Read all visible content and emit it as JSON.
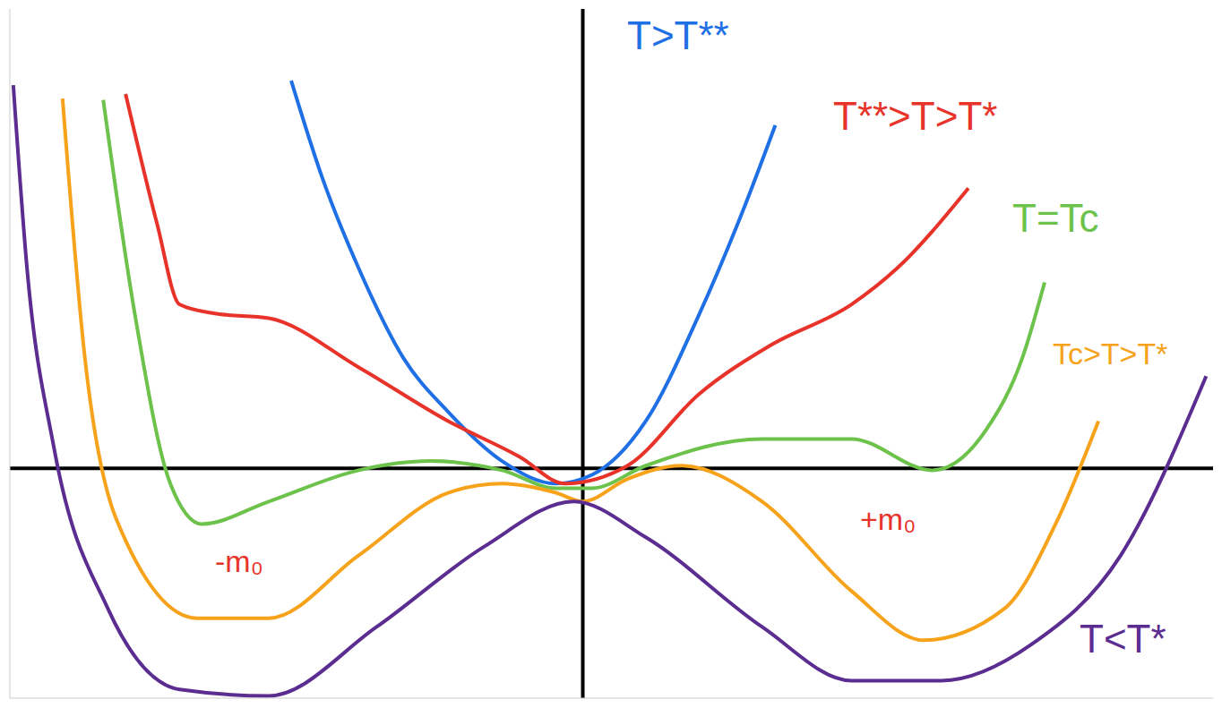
{
  "chart_data": {
    "type": "line",
    "tick_labels": false,
    "grid": false,
    "xlim": [
      -10,
      11
    ],
    "ylim": [
      -5,
      10
    ],
    "series": [
      {
        "name": "T>T**",
        "color": "#1f6fe5",
        "x": [
          -5.09,
          -4.54,
          -3.91,
          -3.13,
          -2.35,
          -1.41,
          -0.47,
          0.16,
          1.1,
          2.03,
          2.82,
          3.36
        ],
        "values": [
          8.44,
          6.3,
          4.35,
          2.4,
          1.23,
          0.16,
          -0.33,
          -0.14,
          1.03,
          3.35,
          5.69,
          7.47
        ]
      },
      {
        "name": "T**>T>T*",
        "color": "#e8332a",
        "x": [
          -7.98,
          -7.43,
          -7.04,
          -6.42,
          -5.48,
          -3.91,
          -2.35,
          -1.1,
          -0.31,
          0.78,
          2.03,
          3.29,
          4.69,
          5.48,
          6.73
        ],
        "values": [
          8.15,
          5.32,
          3.57,
          3.37,
          3.27,
          2.2,
          1.03,
          0.25,
          -0.33,
          0.06,
          1.62,
          2.69,
          3.57,
          4.35,
          6.1
        ]
      },
      {
        "name": "T=Tc",
        "color": "#6cc24a",
        "x": [
          -8.37,
          -7.82,
          -7.2,
          -6.65,
          -5.48,
          -3.91,
          -2.66,
          -1.41,
          -0.47,
          0.16,
          1.1,
          3.13,
          4.69,
          6.1,
          7.04,
          7.67,
          8.06
        ],
        "values": [
          8.02,
          3.37,
          -0.33,
          -1.21,
          -0.72,
          -0.04,
          0.16,
          -0.04,
          -0.43,
          -0.43,
          0.06,
          0.64,
          0.64,
          -0.04,
          0.84,
          2.4,
          4.05
        ]
      },
      {
        "name": "Tc>T>T*",
        "color": "#f7a21b",
        "x": [
          -9.08,
          -8.69,
          -8.14,
          -6.73,
          -5.48,
          -3.91,
          -2.35,
          -1.41,
          -0.47,
          0,
          0.78,
          1.72,
          3.13,
          4.69,
          5.95,
          7.36,
          8.29,
          9.0
        ],
        "values": [
          8.05,
          2.4,
          -1.11,
          -3.26,
          -3.26,
          -1.89,
          -0.53,
          -0.33,
          -0.53,
          -0.72,
          -0.23,
          0.06,
          -0.72,
          -2.67,
          -3.74,
          -3.05,
          -1.11,
          1.03
        ]
      },
      {
        "name": "T<T*",
        "color": "#5b2d91",
        "x": [
          -9.94,
          -9.7,
          -9.23,
          -8.29,
          -7.04,
          -5.48,
          -3.6,
          -1.72,
          -0.16,
          1.1,
          3.13,
          4.69,
          6.26,
          7.82,
          9.39,
          10.88
        ],
        "values": [
          8.34,
          4.35,
          0.45,
          -3.05,
          -4.81,
          -4.95,
          -3.45,
          -1.7,
          -0.72,
          -1.5,
          -3.45,
          -4.62,
          -4.62,
          -3.84,
          -1.89,
          2.01
        ]
      }
    ],
    "annotations": [
      {
        "text": "-m₀",
        "color": "#e8332a"
      },
      {
        "text": "+m₀",
        "color": "#e8332a"
      }
    ]
  }
}
